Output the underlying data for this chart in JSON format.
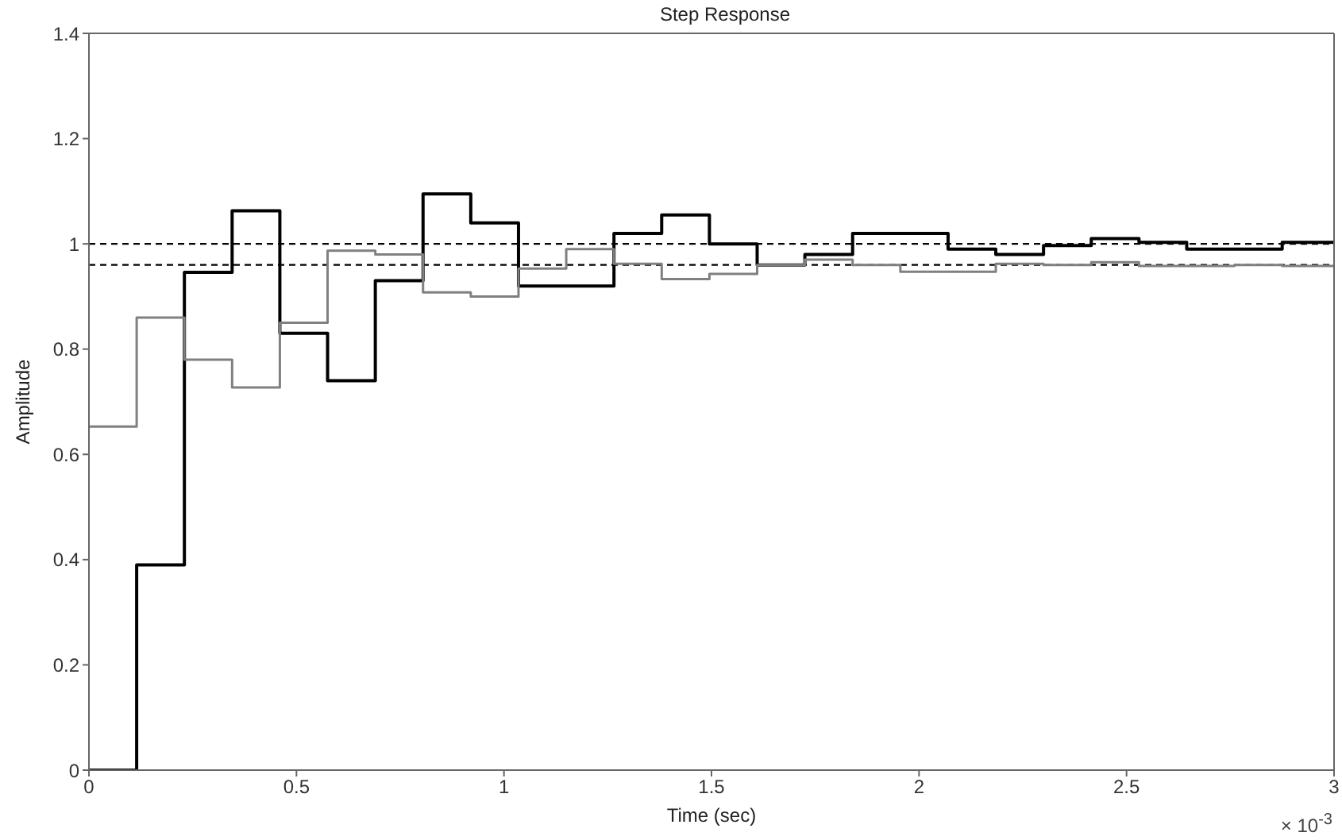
{
  "chart_data": {
    "type": "step",
    "title": "Step Response",
    "xlabel": "Time (sec)",
    "ylabel": "Amplitude",
    "x": [
      0,
      0.115,
      0.23,
      0.345,
      0.46,
      0.575,
      0.69,
      0.805,
      0.92,
      1.035,
      1.15,
      1.265,
      1.38,
      1.495,
      1.61,
      1.725,
      1.84,
      1.955,
      2.07,
      2.185,
      2.3,
      2.415,
      2.53,
      2.645,
      2.76,
      2.875,
      3
    ],
    "series": [
      {
        "color": "#000000",
        "values": [
          0,
          0.39,
          0.946,
          1.063,
          0.83,
          0.74,
          0.93,
          1.095,
          1.04,
          0.92,
          0.92,
          1.02,
          1.055,
          1.0,
          0.96,
          0.98,
          1.02,
          1.02,
          0.99,
          0.98,
          0.997,
          1.01,
          1.003,
          0.99,
          0.99,
          1.003,
          1.003
        ]
      },
      {
        "color": "#808080",
        "values": [
          0.653,
          0.86,
          0.78,
          0.727,
          0.85,
          0.987,
          0.98,
          0.908,
          0.9,
          0.953,
          0.99,
          0.962,
          0.933,
          0.943,
          0.96,
          0.97,
          0.96,
          0.947,
          0.947,
          0.962,
          0.96,
          0.965,
          0.958,
          0.958,
          0.96,
          0.958,
          0.958
        ]
      }
    ],
    "xlim": [
      0,
      3
    ],
    "xticks": [
      0,
      0.5,
      1,
      1.5,
      2,
      2.5,
      3
    ],
    "ylim": [
      0,
      1.4
    ],
    "yticks": [
      0,
      0.2,
      0.4,
      0.6,
      0.8,
      1,
      1.2,
      1.4
    ],
    "ref_lines": [
      {
        "axis": "y",
        "value": 1.0,
        "color": "#000000",
        "line_style": "dashed"
      },
      {
        "axis": "y",
        "value": 0.96,
        "color": "#000000",
        "line_style": "dashed"
      }
    ],
    "annotations": [
      "× 10$^{-3}$"
    ],
    "grid": false,
    "legend": false,
    "marker": "none",
    "line_style": "solid"
  }
}
